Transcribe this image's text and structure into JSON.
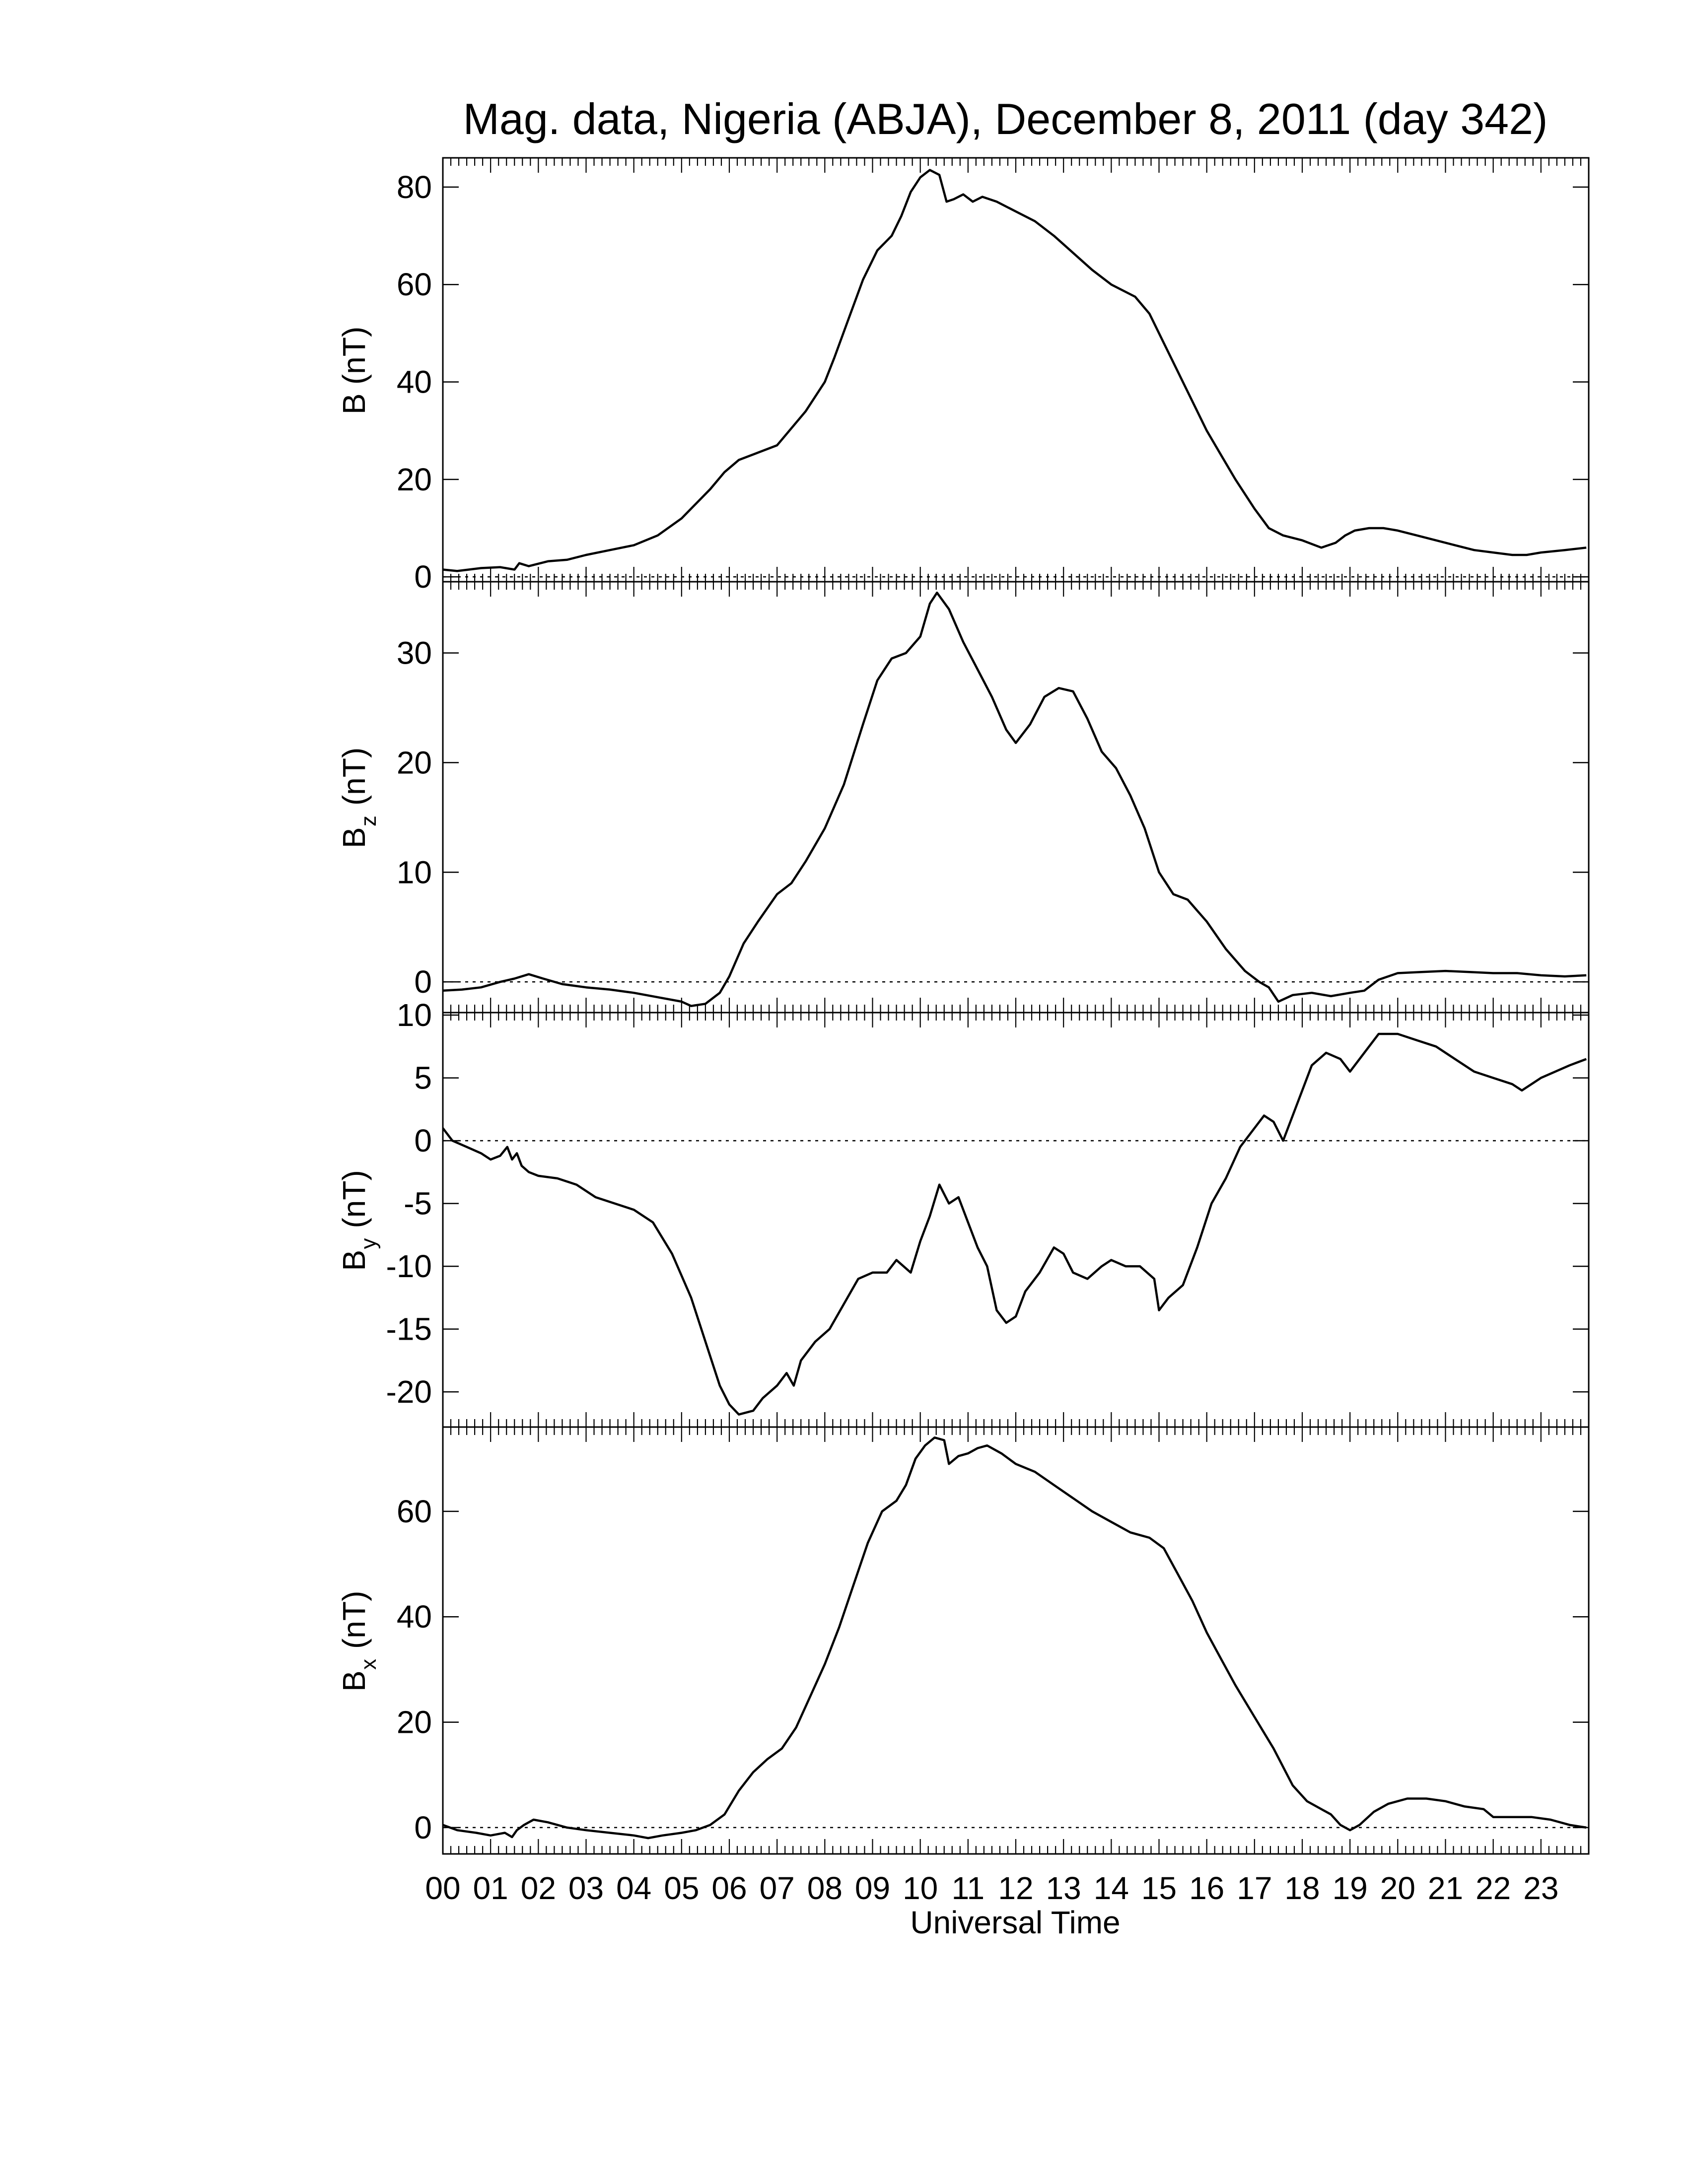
{
  "chart_data": {
    "type": "line",
    "title": "Mag. data, Nigeria (ABJA), December 8, 2011 (day 342)",
    "xlabel": "Universal Time",
    "xlim": [
      0,
      24
    ],
    "x_ticks": [
      "00",
      "01",
      "02",
      "03",
      "04",
      "05",
      "06",
      "07",
      "08",
      "09",
      "10",
      "11",
      "12",
      "13",
      "14",
      "15",
      "16",
      "17",
      "18",
      "19",
      "20",
      "21",
      "22",
      "23"
    ],
    "grid": false,
    "zero_line": "dotted",
    "line_color": "#000000",
    "panels": [
      {
        "id": "B",
        "ylabel": "B (nT)",
        "ylabel_main": "B",
        "ylabel_sub": "",
        "ylabel_unit": "(nT)",
        "ylim": [
          -1,
          86
        ],
        "yticks": [
          0,
          20,
          40,
          60,
          80
        ],
        "x": [
          0,
          0.3,
          0.8,
          1.2,
          1.5,
          1.6,
          1.8,
          2.2,
          2.6,
          3.0,
          3.5,
          4.0,
          4.5,
          5.0,
          5.3,
          5.6,
          5.9,
          6.2,
          6.6,
          7.0,
          7.3,
          7.6,
          8.0,
          8.2,
          8.5,
          8.8,
          9.1,
          9.4,
          9.6,
          9.8,
          10.0,
          10.2,
          10.4,
          10.55,
          10.7,
          10.9,
          11.1,
          11.3,
          11.6,
          12.0,
          12.4,
          12.8,
          13.2,
          13.6,
          14.0,
          14.5,
          14.8,
          15.1,
          15.4,
          15.7,
          16.0,
          16.3,
          16.6,
          17.0,
          17.3,
          17.6,
          18.0,
          18.4,
          18.7,
          18.9,
          19.1,
          19.4,
          19.7,
          20.0,
          20.4,
          20.8,
          21.2,
          21.6,
          22.0,
          22.4,
          22.7,
          23.0,
          23.5,
          23.95
        ],
        "y": [
          1.5,
          1.2,
          1.8,
          2.0,
          1.5,
          2.8,
          2.2,
          3.2,
          3.5,
          4.5,
          5.5,
          6.5,
          8.5,
          12.0,
          15.0,
          18.0,
          21.5,
          24.0,
          25.5,
          27.0,
          30.5,
          34.0,
          40.0,
          45.0,
          53.0,
          61.0,
          67.0,
          70.0,
          74.0,
          79.0,
          82.0,
          83.5,
          82.5,
          77.0,
          77.5,
          78.5,
          77.0,
          78.0,
          77.0,
          75.0,
          73.0,
          70.0,
          66.5,
          63.0,
          60.0,
          57.5,
          54.0,
          48.0,
          42.0,
          36.0,
          30.0,
          25.0,
          20.0,
          14.0,
          10.0,
          8.5,
          7.5,
          6.0,
          7.0,
          8.5,
          9.5,
          10.0,
          10.0,
          9.5,
          8.5,
          7.5,
          6.5,
          5.5,
          5.0,
          4.5,
          4.5,
          5.0,
          5.5,
          6.0
        ]
      },
      {
        "id": "Bz",
        "ylabel": "Bz (nT)",
        "ylabel_main": "B",
        "ylabel_sub": "z",
        "ylabel_unit": "(nT)",
        "ylim": [
          -2.8,
          36.5
        ],
        "yticks": [
          0,
          10,
          20,
          30
        ],
        "x": [
          0,
          0.4,
          0.8,
          1.2,
          1.5,
          1.8,
          2.1,
          2.5,
          3.0,
          3.5,
          4.0,
          4.5,
          5.0,
          5.2,
          5.5,
          5.8,
          6.0,
          6.3,
          6.6,
          7.0,
          7.3,
          7.6,
          8.0,
          8.4,
          8.8,
          9.1,
          9.4,
          9.7,
          10.0,
          10.2,
          10.35,
          10.6,
          10.9,
          11.2,
          11.5,
          11.8,
          12.0,
          12.3,
          12.6,
          12.9,
          13.2,
          13.5,
          13.8,
          14.1,
          14.4,
          14.7,
          15.0,
          15.3,
          15.6,
          16.0,
          16.4,
          16.8,
          17.1,
          17.3,
          17.5,
          17.8,
          18.2,
          18.6,
          19.0,
          19.3,
          19.6,
          20.0,
          20.5,
          21.0,
          21.5,
          22.0,
          22.5,
          23.0,
          23.5,
          23.95
        ],
        "y": [
          -0.8,
          -0.7,
          -0.5,
          0.0,
          0.3,
          0.7,
          0.3,
          -0.2,
          -0.5,
          -0.7,
          -1.0,
          -1.4,
          -1.8,
          -2.2,
          -2.0,
          -1.0,
          0.5,
          3.5,
          5.5,
          8.0,
          9.0,
          11.0,
          14.0,
          18.0,
          23.5,
          27.5,
          29.5,
          30.0,
          31.5,
          34.5,
          35.5,
          34.0,
          31.0,
          28.5,
          26.0,
          23.0,
          21.8,
          23.5,
          26.0,
          26.8,
          26.5,
          24.0,
          21.0,
          19.5,
          17.0,
          14.0,
          10.0,
          8.0,
          7.5,
          5.5,
          3.0,
          1.0,
          0.0,
          -0.5,
          -1.8,
          -1.2,
          -1.0,
          -1.3,
          -1.0,
          -0.8,
          0.2,
          0.8,
          0.9,
          1.0,
          0.9,
          0.8,
          0.8,
          0.6,
          0.5,
          0.6
        ]
      },
      {
        "id": "By",
        "ylabel": "By (nT)",
        "ylabel_main": "B",
        "ylabel_sub": "y",
        "ylabel_unit": "(nT)",
        "ylim": [
          -22.8,
          10.2
        ],
        "yticks": [
          10,
          5,
          0,
          -5,
          -10,
          -15,
          -20
        ],
        "x": [
          0,
          0.2,
          0.5,
          0.8,
          1.0,
          1.2,
          1.35,
          1.45,
          1.55,
          1.65,
          1.8,
          2.0,
          2.4,
          2.8,
          3.2,
          3.6,
          4.0,
          4.4,
          4.8,
          5.2,
          5.5,
          5.8,
          6.0,
          6.2,
          6.5,
          6.7,
          7.0,
          7.2,
          7.35,
          7.5,
          7.8,
          8.1,
          8.4,
          8.7,
          9.0,
          9.3,
          9.5,
          9.8,
          10.0,
          10.2,
          10.4,
          10.6,
          10.8,
          11.0,
          11.2,
          11.4,
          11.6,
          11.8,
          12.0,
          12.2,
          12.5,
          12.8,
          13.0,
          13.2,
          13.5,
          13.8,
          14.0,
          14.3,
          14.6,
          14.9,
          15.0,
          15.2,
          15.5,
          15.8,
          16.1,
          16.4,
          16.7,
          17.0,
          17.2,
          17.4,
          17.6,
          17.8,
          18.0,
          18.2,
          18.5,
          18.8,
          19.0,
          19.3,
          19.6,
          20.0,
          20.4,
          20.8,
          21.2,
          21.6,
          22.0,
          22.4,
          22.6,
          22.8,
          23.0,
          23.3,
          23.6,
          23.95
        ],
        "y": [
          1.0,
          0.0,
          -0.5,
          -1.0,
          -1.5,
          -1.2,
          -0.5,
          -1.5,
          -1.0,
          -2.0,
          -2.5,
          -2.8,
          -3.0,
          -3.5,
          -4.5,
          -5.0,
          -5.5,
          -6.5,
          -9.0,
          -12.5,
          -16.0,
          -19.5,
          -21.0,
          -21.8,
          -21.5,
          -20.5,
          -19.5,
          -18.5,
          -19.5,
          -17.5,
          -16.0,
          -15.0,
          -13.0,
          -11.0,
          -10.5,
          -10.5,
          -9.5,
          -10.5,
          -8.0,
          -6.0,
          -3.5,
          -5.0,
          -4.5,
          -6.5,
          -8.5,
          -10.0,
          -13.5,
          -14.5,
          -14.0,
          -12.0,
          -10.5,
          -8.5,
          -9.0,
          -10.5,
          -11.0,
          -10.0,
          -9.5,
          -10.0,
          -10.0,
          -11.0,
          -13.5,
          -12.5,
          -11.5,
          -8.5,
          -5.0,
          -3.0,
          -0.5,
          1.0,
          2.0,
          1.5,
          0.0,
          2.0,
          4.0,
          6.0,
          7.0,
          6.5,
          5.5,
          7.0,
          8.5,
          8.5,
          8.0,
          7.5,
          6.5,
          5.5,
          5.0,
          4.5,
          4.0,
          4.5,
          5.0,
          5.5,
          6.0,
          6.5
        ]
      },
      {
        "id": "Bx",
        "ylabel": "Bx (nT)",
        "ylabel_main": "B",
        "ylabel_sub": "x",
        "ylabel_unit": "(nT)",
        "ylim": [
          -5,
          76
        ],
        "yticks": [
          0,
          20,
          40,
          60
        ],
        "x": [
          0,
          0.3,
          0.7,
          1.0,
          1.3,
          1.45,
          1.55,
          1.7,
          1.9,
          2.2,
          2.6,
          3.0,
          3.5,
          4.0,
          4.3,
          4.6,
          5.0,
          5.3,
          5.6,
          5.9,
          6.2,
          6.5,
          6.8,
          7.1,
          7.4,
          7.7,
          8.0,
          8.3,
          8.6,
          8.9,
          9.2,
          9.5,
          9.7,
          9.9,
          10.1,
          10.3,
          10.5,
          10.6,
          10.8,
          11.0,
          11.2,
          11.4,
          11.7,
          12.0,
          12.4,
          12.8,
          13.2,
          13.6,
          14.0,
          14.4,
          14.8,
          15.1,
          15.4,
          15.7,
          16.0,
          16.3,
          16.6,
          17.0,
          17.4,
          17.8,
          18.1,
          18.4,
          18.6,
          18.8,
          19.0,
          19.2,
          19.5,
          19.8,
          20.2,
          20.6,
          21.0,
          21.4,
          21.8,
          22.0,
          22.4,
          22.8,
          23.2,
          23.6,
          23.95
        ],
        "y": [
          0.5,
          -0.5,
          -1.0,
          -1.5,
          -1.0,
          -1.8,
          -0.5,
          0.5,
          1.5,
          1.0,
          0.0,
          -0.5,
          -1.0,
          -1.5,
          -2.0,
          -1.5,
          -1.0,
          -0.5,
          0.5,
          2.5,
          7.0,
          10.5,
          13.0,
          15.0,
          19.0,
          25.0,
          31.0,
          38.0,
          46.0,
          54.0,
          60.0,
          62.0,
          65.0,
          70.0,
          72.5,
          74.0,
          73.5,
          69.0,
          70.5,
          71.0,
          72.0,
          72.5,
          71.0,
          69.0,
          67.5,
          65.0,
          62.5,
          60.0,
          58.0,
          56.0,
          55.0,
          53.0,
          48.0,
          43.0,
          37.0,
          32.0,
          27.0,
          21.0,
          15.0,
          8.0,
          5.0,
          3.5,
          2.5,
          0.5,
          -0.5,
          0.5,
          3.0,
          4.5,
          5.5,
          5.5,
          5.0,
          4.0,
          3.5,
          2.0,
          2.0,
          2.0,
          1.5,
          0.5,
          0.0
        ]
      }
    ]
  }
}
